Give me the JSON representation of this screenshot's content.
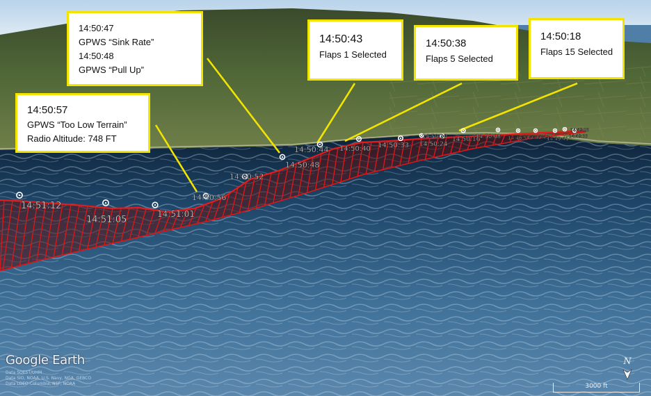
{
  "callouts": [
    {
      "lines": [
        "14:50:47",
        "GPWS “Sink Rate”",
        "14:50:48",
        "GPWS “Pull Up”"
      ]
    },
    {
      "lines": [
        "14:50:43",
        "Flaps 1 Selected"
      ]
    },
    {
      "lines": [
        "14:50:38",
        "Flaps 5 Selected"
      ]
    },
    {
      "lines": [
        "14:50:18",
        "Flaps 15 Selected"
      ]
    },
    {
      "lines": [
        "14:50:57",
        "GPWS “Too Low Terrain”",
        "Radio Altitude: 748 FT"
      ]
    }
  ],
  "track_labels": [
    "14:51:12",
    "14:51:05",
    "14:51:01",
    "14:50:56",
    "14:50:52",
    "14:50:48",
    "14:50:44",
    "14:50:40",
    "14:50:33",
    "14:50:24",
    "14:50:20",
    "14:50:16",
    "14:50:08",
    "14:49:57",
    "14:49:49",
    "14:49:41",
    "14:49:33",
    "14:49:25"
  ],
  "logo": "Google Earth",
  "attribution": [
    "Data SOEST/UHM",
    "Data SIO, NOAA, U.S. Navy, NGA, GEBCO",
    "Data LDEO-Columbia, NSF, NOAA"
  ],
  "scale_label": "3000 ft",
  "north_label": "N",
  "colors": {
    "track": "#d81818",
    "callout_border": "#f2e400",
    "callout_leader": "#f2e400"
  }
}
